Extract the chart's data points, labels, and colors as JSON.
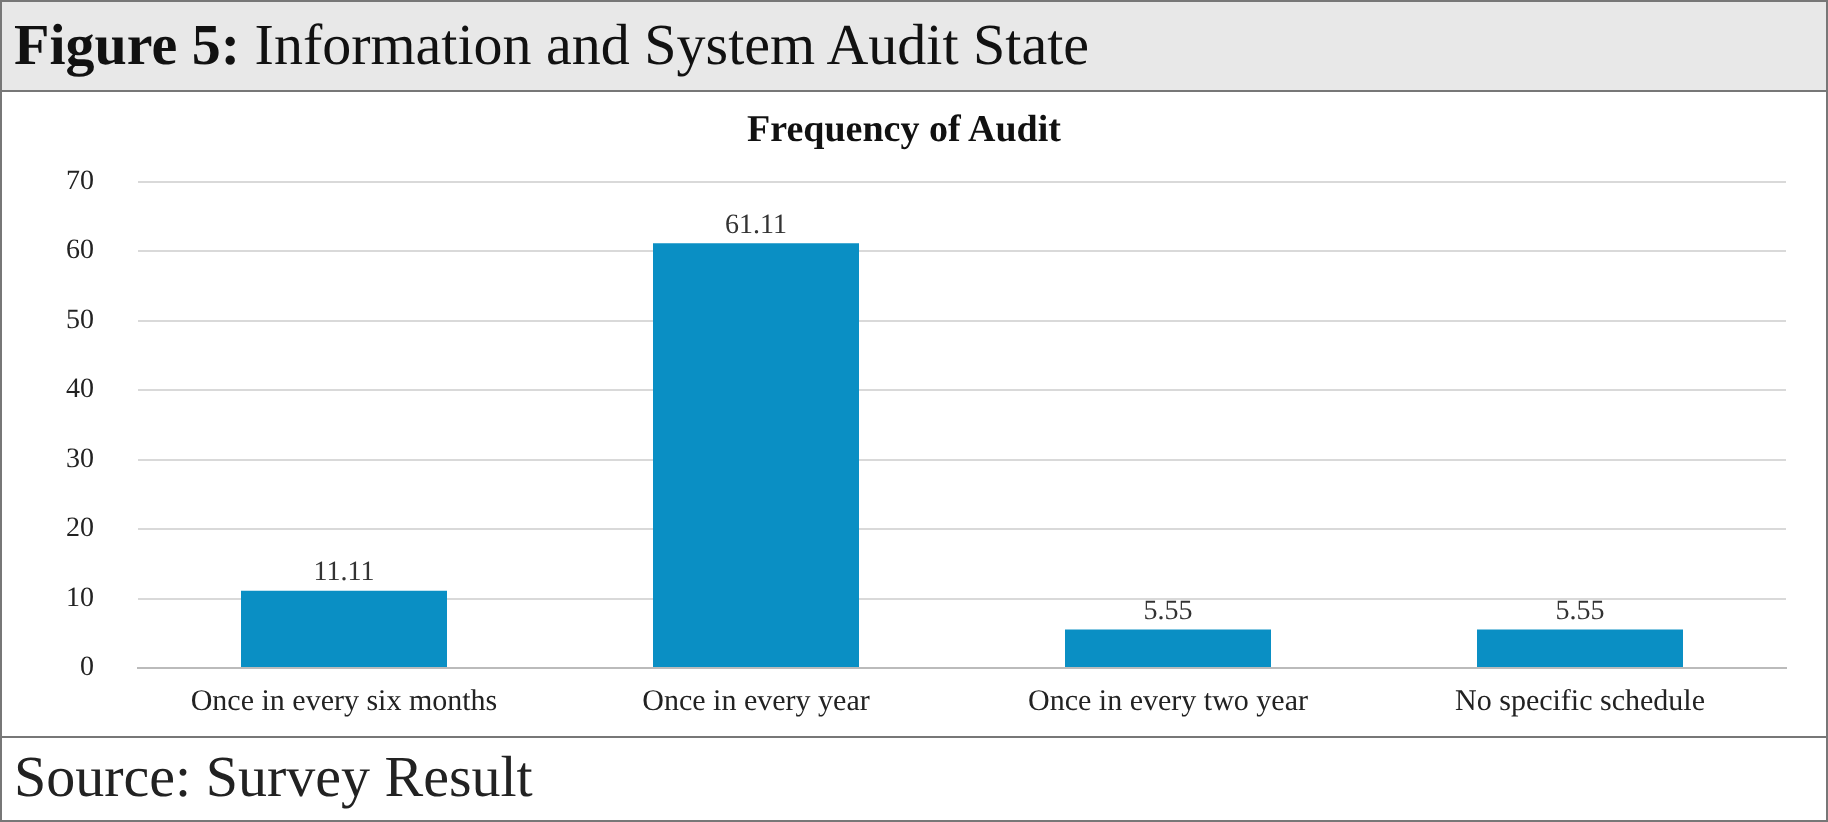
{
  "chart_data": {
    "type": "bar",
    "title": "Frequency of Audit",
    "annotations": [
      "Figure 5: Information and System Audit State",
      "Source: Survey Result"
    ],
    "categories": [
      "Once in every six months",
      "Once in every year",
      "Once in every two year",
      "No specific schedule"
    ],
    "values": [
      11.11,
      61.11,
      5.55,
      5.55
    ],
    "color": "#0a8fc4",
    "ylim": [
      0,
      70
    ],
    "yticks": [
      0,
      10,
      20,
      30,
      40,
      50,
      60,
      70
    ],
    "grid": "y",
    "data_labels": true,
    "legend": false
  }
}
